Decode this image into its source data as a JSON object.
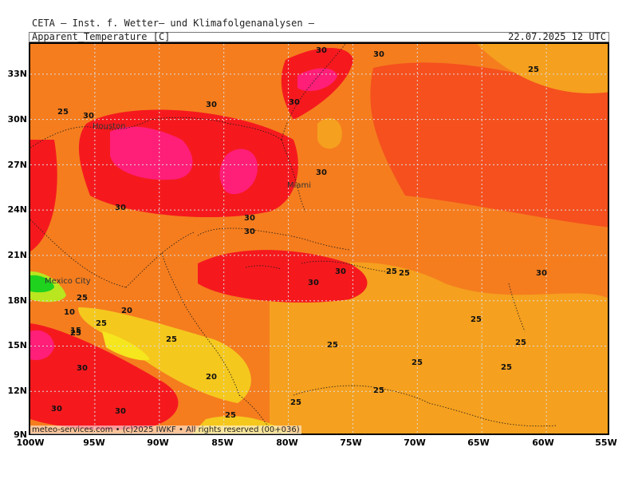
{
  "header": {
    "institute": "CETA – Inst. f. Wetter– und Klimafolgenanalysen –",
    "variable": "Apparent_Temperature [C]",
    "datetime": "22.07.2025 12 UTC"
  },
  "footer": {
    "text": "meteo-services.com • (c)2025 IWKF • All rights reserved (00+036)"
  },
  "map": {
    "lon_range": [
      -100,
      -55
    ],
    "lat_range": [
      9,
      35
    ],
    "lat_labels": [
      "33N",
      "30N",
      "27N",
      "24N",
      "21N",
      "18N",
      "15N",
      "12N",
      "9N"
    ],
    "lon_labels": [
      "100W",
      "95W",
      "90W",
      "85W",
      "80W",
      "75W",
      "70W",
      "65W",
      "60W",
      "55W"
    ],
    "colors": {
      "c10": "#1ed21e",
      "c15": "#b9e61e",
      "c20": "#f5e61e",
      "c22": "#f5c81e",
      "c25": "#f5a01e",
      "c27": "#f57d1e",
      "c30": "#f5501e",
      "c33": "#f5191e",
      "c35": "#ff1e78"
    },
    "cities": [
      "Houston",
      "Miami",
      "Mexico City"
    ],
    "contour_labels": [
      "30",
      "30",
      "25",
      "30",
      "30",
      "30",
      "25",
      "30",
      "30",
      "30",
      "30",
      "30",
      "25",
      "25",
      "30",
      "30",
      "25",
      "10",
      "15",
      "20",
      "25",
      "25",
      "25",
      "25",
      "25",
      "25",
      "30",
      "20",
      "30",
      "30",
      "25",
      "25",
      "25",
      "25",
      "25"
    ]
  }
}
